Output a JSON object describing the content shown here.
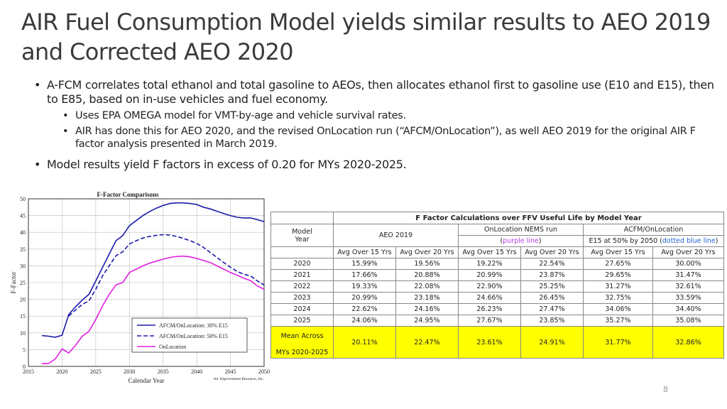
{
  "slide": {
    "title": "AIR Fuel Consumption Model yields similar results to AEO 2019 and Corrected AEO 2020",
    "bullets": [
      "A-FCM correlates total ethanol and total gasoline to AEOs, then allocates ethanol first to gasoline use (E10 and E15), then to E85, based on in-use vehicles and fuel economy.",
      "Model results yield F factors in excess of 0.20 for MYs 2020-2025."
    ],
    "sub_bullets": [
      "Uses EPA OMEGA model for VMT-by-age and vehicle survival rates.",
      "AIR has done this for AEO 2020, and the revised OnLocation run (“AFCM/OnLocation”), as well AEO 2019 for the original AIR F factor analysis presented in March 2019."
    ],
    "page_number": "8"
  },
  "chart_data": {
    "type": "line",
    "title": "F-Factor Comparisons",
    "xlabel": "Calendar Year",
    "ylabel": "F-Factor",
    "credit": "Air Improvement Resource, Inc.",
    "xlim": [
      2015,
      2050
    ],
    "ylim": [
      0,
      50
    ],
    "x_ticks": [
      2015,
      2020,
      2025,
      2030,
      2035,
      2040,
      2045,
      2050
    ],
    "y_ticks": [
      0,
      5,
      10,
      15,
      20,
      25,
      30,
      35,
      40,
      45,
      50
    ],
    "grid": true,
    "legend_position": "bottom-right",
    "series": [
      {
        "name": "AFCM/OnLocation: 30% E15",
        "color": "#1a1aaa",
        "style": "solid",
        "points": [
          [
            2017,
            9.2
          ],
          [
            2018,
            9
          ],
          [
            2019,
            8.7
          ],
          [
            2020,
            9.3
          ],
          [
            2021,
            15.5
          ],
          [
            2022,
            17.8
          ],
          [
            2023,
            19.8
          ],
          [
            2024,
            21.5
          ],
          [
            2025,
            25.5
          ],
          [
            2026,
            29.5
          ],
          [
            2027,
            33.5
          ],
          [
            2028,
            37.5
          ],
          [
            2029,
            39
          ],
          [
            2030,
            42
          ],
          [
            2031,
            43.5
          ],
          [
            2032,
            45
          ],
          [
            2033,
            46.2
          ],
          [
            2034,
            47.2
          ],
          [
            2035,
            48
          ],
          [
            2036,
            48.6
          ],
          [
            2037,
            48.8
          ],
          [
            2038,
            48.8
          ],
          [
            2039,
            48.6
          ],
          [
            2040,
            48.3
          ],
          [
            2041,
            47.5
          ],
          [
            2042,
            47
          ],
          [
            2043,
            46.3
          ],
          [
            2044,
            45.6
          ],
          [
            2045,
            45
          ],
          [
            2046,
            44.5
          ],
          [
            2047,
            44.3
          ],
          [
            2048,
            44.3
          ],
          [
            2049,
            43.8
          ],
          [
            2050,
            43.2
          ]
        ]
      },
      {
        "name": "AFCM/OnLocation: 50% E15",
        "color": "#1a1aaa",
        "style": "dashed",
        "points": [
          [
            2021,
            15
          ],
          [
            2022,
            16.8
          ],
          [
            2023,
            18.5
          ],
          [
            2024,
            19.6
          ],
          [
            2025,
            23
          ],
          [
            2026,
            27
          ],
          [
            2027,
            30
          ],
          [
            2028,
            33
          ],
          [
            2029,
            34.2
          ],
          [
            2030,
            36.5
          ],
          [
            2031,
            37.5
          ],
          [
            2032,
            38.3
          ],
          [
            2033,
            38.8
          ],
          [
            2034,
            39.1
          ],
          [
            2035,
            39.3
          ],
          [
            2036,
            39.2
          ],
          [
            2037,
            38.8
          ],
          [
            2038,
            38.2
          ],
          [
            2039,
            37.5
          ],
          [
            2040,
            36.7
          ],
          [
            2041,
            35.5
          ],
          [
            2042,
            34
          ],
          [
            2043,
            32.5
          ],
          [
            2044,
            31
          ],
          [
            2045,
            29.6
          ],
          [
            2046,
            28.3
          ],
          [
            2047,
            27.5
          ],
          [
            2048,
            27
          ],
          [
            2049,
            25.5
          ],
          [
            2050,
            24.3
          ]
        ]
      },
      {
        "name": "OnLocation",
        "color": "#e020e0",
        "style": "solid",
        "points": [
          [
            2017,
            0.8
          ],
          [
            2018,
            0.9
          ],
          [
            2019,
            2.2
          ],
          [
            2020,
            5.2
          ],
          [
            2021,
            4
          ],
          [
            2022,
            6.3
          ],
          [
            2023,
            9
          ],
          [
            2024,
            10.5
          ],
          [
            2025,
            14
          ],
          [
            2026,
            18
          ],
          [
            2027,
            21.5
          ],
          [
            2028,
            24.3
          ],
          [
            2029,
            25
          ],
          [
            2030,
            28
          ],
          [
            2031,
            29
          ],
          [
            2032,
            30
          ],
          [
            2033,
            30.8
          ],
          [
            2034,
            31.4
          ],
          [
            2035,
            32
          ],
          [
            2036,
            32.5
          ],
          [
            2037,
            32.8
          ],
          [
            2038,
            32.9
          ],
          [
            2039,
            32.7
          ],
          [
            2040,
            32.2
          ],
          [
            2041,
            31.6
          ],
          [
            2042,
            31
          ],
          [
            2043,
            30
          ],
          [
            2044,
            29
          ],
          [
            2045,
            28
          ],
          [
            2046,
            27.2
          ],
          [
            2047,
            26.3
          ],
          [
            2048,
            25.6
          ],
          [
            2049,
            24
          ],
          [
            2050,
            23
          ]
        ]
      }
    ]
  },
  "table": {
    "title": "F Factor Calculations over FFV Useful Life by Model Year",
    "col_model": "Model",
    "col_year": "Year",
    "col_aeo": "AEO 2019",
    "col_onloc": "OnLocation NEMS run",
    "onloc_paren_open": "(",
    "onloc_paren_color": "purple line",
    "onloc_paren_close": ")",
    "col_acfm": "ACFM/OnLocation",
    "acfm_sub_pre": "E15 at 50% by 2050 (",
    "acfm_sub_color": "dotted blue line",
    "acfm_sub_post": ")",
    "sub_headers": [
      "Avg Over 15 Yrs",
      "Avg Over 20 Yrs",
      "Avg Over 15 Yrs",
      "Avg Over 20 Yrs",
      "Avg Over 15 Yrs",
      "Avg Over 20 Yrs"
    ],
    "rows": [
      {
        "year": "2020",
        "values": [
          "15.99%",
          "19.56%",
          "19.22%",
          "22.54%",
          "27.65%",
          "30.00%"
        ]
      },
      {
        "year": "2021",
        "values": [
          "17.66%",
          "20.88%",
          "20.99%",
          "23.87%",
          "29.65%",
          "31.47%"
        ]
      },
      {
        "year": "2022",
        "values": [
          "19.33%",
          "22.08%",
          "22.90%",
          "25.25%",
          "31.27%",
          "32.61%"
        ]
      },
      {
        "year": "2023",
        "values": [
          "20.99%",
          "23.18%",
          "24.66%",
          "26.45%",
          "32.75%",
          "33.59%"
        ]
      },
      {
        "year": "2024",
        "values": [
          "22.62%",
          "24.16%",
          "26.23%",
          "27.47%",
          "34.06%",
          "34.40%"
        ]
      },
      {
        "year": "2025",
        "values": [
          "24.06%",
          "24.95%",
          "27.67%",
          "23.85%",
          "35.27%",
          "35.08%"
        ]
      }
    ],
    "mean_label_1": "Mean Across",
    "mean_label_2": "MYs 2020-2025",
    "mean_values": [
      "20.11%",
      "22.47%",
      "23.61%",
      "24.91%",
      "31.77%",
      "32.86%"
    ]
  }
}
